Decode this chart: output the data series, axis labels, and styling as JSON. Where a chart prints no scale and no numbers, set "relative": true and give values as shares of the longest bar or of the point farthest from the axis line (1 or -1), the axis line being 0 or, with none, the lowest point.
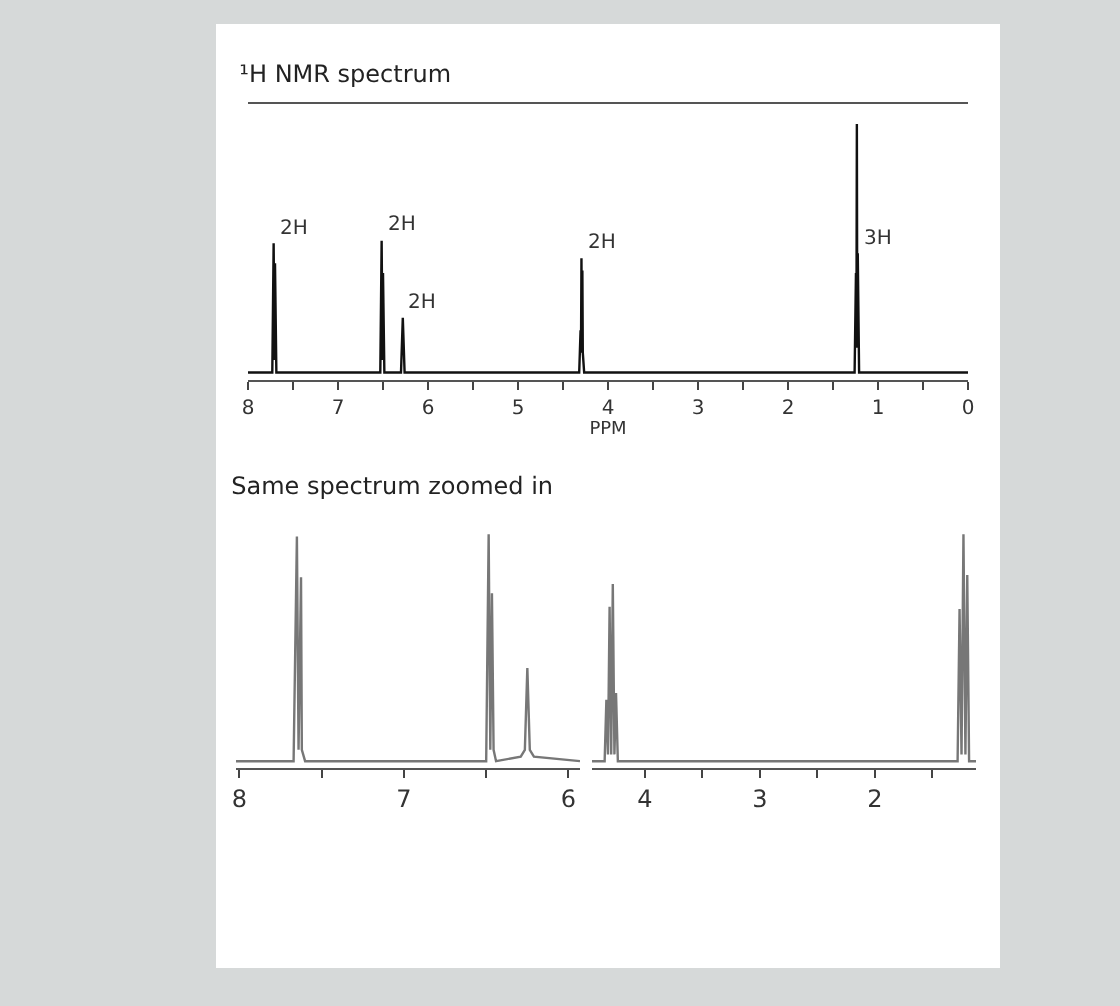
{
  "chart_data": [
    {
      "type": "line",
      "title": "¹H NMR spectrum",
      "xlabel": "PPM",
      "relative": true,
      "xlim": [
        8,
        0
      ],
      "xticks": [
        8,
        {
          "value": 7.5,
          "label": null
        },
        7,
        {
          "value": 6.5,
          "label": null
        },
        6,
        {
          "value": 5.5,
          "label": null
        },
        5,
        {
          "value": 4.5,
          "label": null
        },
        4,
        {
          "value": 3.5,
          "label": null
        },
        3,
        {
          "value": 2.5,
          "label": null
        },
        2,
        {
          "value": 1.5,
          "label": null
        },
        1,
        {
          "value": 0.5,
          "label": null
        },
        0
      ],
      "x": [
        8,
        7.73,
        7.715,
        7.705,
        7.7,
        7.685,
        6.53,
        6.515,
        6.505,
        6.5,
        6.485,
        6.3,
        6.28,
        6.26,
        4.32,
        4.305,
        4.3,
        4.295,
        4.29,
        4.285,
        4.28,
        4.265,
        1.26,
        1.245,
        1.24,
        1.235,
        1.23,
        1.225,
        1.21,
        0
      ],
      "series": [
        {
          "color": "#111111",
          "values": [
            0,
            0,
            0.52,
            0.05,
            0.44,
            0,
            0,
            0.53,
            0.05,
            0.4,
            0,
            0,
            0.22,
            0,
            0,
            0.17,
            0.08,
            0.46,
            0.08,
            0.41,
            0.08,
            0,
            0,
            0.4,
            0.1,
            1,
            0.1,
            0.48,
            0,
            0
          ]
        }
      ],
      "annotations": [
        {
          "text": "2H",
          "x": 7.71,
          "y": 0.52
        },
        {
          "text": "2H",
          "x": 6.51,
          "y": 0.53
        },
        {
          "text": "2H",
          "x": 6.28,
          "y": 0.22
        },
        {
          "text": "2H",
          "x": 4.29,
          "y": 0.46
        },
        {
          "text": "3H",
          "x": 1.23,
          "y": 0.48
        }
      ]
    },
    {
      "type": "line",
      "title": "Same spectrum zoomed in",
      "relative": true,
      "xlim": [
        8.02,
        5.93
      ],
      "xticks": [
        8,
        {
          "value": 7.5,
          "label": null
        },
        7,
        {
          "value": 6.5,
          "label": null
        },
        6
      ],
      "x": [
        8.02,
        7.67,
        7.65,
        7.64,
        7.625,
        7.62,
        7.6,
        6.5,
        6.485,
        6.475,
        6.465,
        6.455,
        6.44,
        6.29,
        6.265,
        6.25,
        6.235,
        6.21,
        5.93
      ],
      "series": [
        {
          "color": "#777777",
          "values": [
            0,
            0,
            0.99,
            0.05,
            0.81,
            0.05,
            0,
            0,
            1,
            0.05,
            0.74,
            0.05,
            0,
            0.02,
            0.05,
            0.41,
            0.05,
            0.02,
            0
          ]
        }
      ]
    },
    {
      "type": "line",
      "relative": true,
      "xlim": [
        4.46,
        1.12
      ],
      "xticks": [
        4,
        {
          "value": 3.5,
          "label": null
        },
        3,
        {
          "value": 2.5,
          "label": null
        },
        2,
        {
          "value": 1.5,
          "label": null
        }
      ],
      "x": [
        4.46,
        4.35,
        4.335,
        4.321,
        4.307,
        4.293,
        4.279,
        4.265,
        4.251,
        4.235,
        1.28,
        1.263,
        1.246,
        1.229,
        1.212,
        1.196,
        1.18,
        1.12
      ],
      "series": [
        {
          "color": "#777777",
          "values": [
            0,
            0,
            0.27,
            0.03,
            0.68,
            0.03,
            0.78,
            0.03,
            0.3,
            0,
            0,
            0.67,
            0.03,
            1,
            0.03,
            0.82,
            0,
            0
          ]
        }
      ]
    }
  ]
}
